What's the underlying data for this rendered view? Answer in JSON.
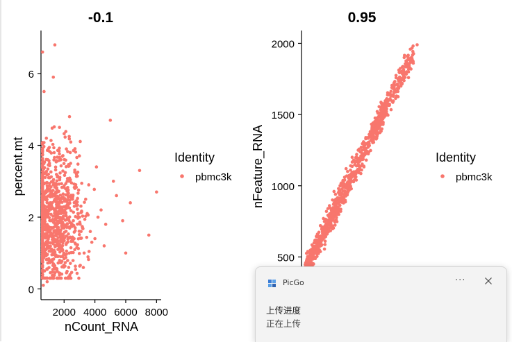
{
  "chart_data": [
    {
      "type": "scatter",
      "title": "-0.1",
      "xlabel": "nCount_RNA",
      "ylabel": "percent.mt",
      "xlim": [
        500,
        8300
      ],
      "ylim": [
        -0.3,
        7.2
      ],
      "xticks": [
        2000,
        4000,
        6000,
        8000
      ],
      "yticks": [
        0,
        2,
        4,
        6
      ],
      "point_color": "#F8766D",
      "legend": {
        "title": "Identity",
        "entries": [
          "pbmc3k"
        ],
        "placement": "right"
      },
      "series": [
        {
          "name": "pbmc3k",
          "x": [
            600,
            700,
            850,
            1000,
            1100,
            1250,
            1400,
            1500,
            1650,
            1800,
            1900,
            2050,
            2200,
            2350,
            2500,
            2650,
            2800,
            3000,
            3200,
            3400,
            3600,
            3800,
            4100,
            4400,
            4700,
            5000,
            5400,
            5800,
            6300,
            6900,
            7500,
            8000,
            1200,
            1600,
            2100,
            2600,
            3100,
            900,
            1300,
            1700,
            2400,
            2900,
            3300,
            3700,
            4200,
            800,
            1050,
            1450,
            1950,
            2300,
            2700,
            3500,
            4000,
            4600,
            5200,
            6000,
            650,
            1150,
            1550,
            2150
          ],
          "y": [
            6.6,
            5.5,
            4.2,
            3.1,
            2.4,
            1.5,
            6.8,
            2.8,
            1.2,
            3.6,
            0.9,
            2.2,
            1.8,
            4.8,
            2.6,
            1.4,
            3.2,
            2.0,
            1.7,
            2.5,
            2.9,
            1.3,
            3.4,
            2.2,
            1.8,
            4.7,
            2.6,
            1.9,
            2.4,
            3.3,
            1.5,
            2.7,
            0.8,
            1.1,
            2.3,
            1.9,
            1.6,
            0.2,
            5.9,
            4.5,
            3.8,
            2.1,
            1.0,
            1.6,
            2.0,
            1.0,
            3.5,
            2.9,
            1.5,
            0.6,
            2.8,
            2.1,
            1.4,
            1.2,
            3.0,
            1.0,
            0.1,
            1.9,
            0.5,
            3.9
          ]
        }
      ]
    },
    {
      "type": "scatter",
      "title": "0.95",
      "xlabel": "",
      "ylabel": "nFeature_RNA",
      "ylim": [
        200,
        2090
      ],
      "yticks": [
        500,
        1000,
        1500,
        2000
      ],
      "point_color": "#F8766D",
      "legend": {
        "title": "Identity",
        "entries": [
          "pbmc3k"
        ],
        "placement": "right"
      },
      "series": [
        {
          "name": "pbmc3k",
          "x": [
            600,
            800,
            1000,
            1200,
            1400,
            1600,
            1800,
            2000,
            2200,
            2400,
            2600,
            2800,
            3000,
            3200,
            3400,
            3600,
            3800,
            4000,
            4300,
            4600,
            4900,
            5200,
            5500,
            5800,
            6100,
            6500,
            6900,
            7300,
            7700,
            8000,
            900,
            1300,
            1700,
            2100,
            2500,
            2900,
            3300,
            3700,
            4100,
            4500
          ],
          "y": [
            400,
            470,
            540,
            600,
            660,
            720,
            770,
            820,
            860,
            900,
            940,
            980,
            1020,
            1060,
            1100,
            1140,
            1180,
            1220,
            1270,
            1330,
            1380,
            1430,
            1490,
            1540,
            1600,
            1660,
            1730,
            1800,
            1880,
            1990,
            520,
            620,
            700,
            840,
            960,
            1000,
            1120,
            1200,
            1250,
            1300
          ]
        }
      ]
    }
  ],
  "notification": {
    "app_name": "PicGo",
    "more_label": "···",
    "title": "上传进度",
    "body": "正在上传"
  }
}
